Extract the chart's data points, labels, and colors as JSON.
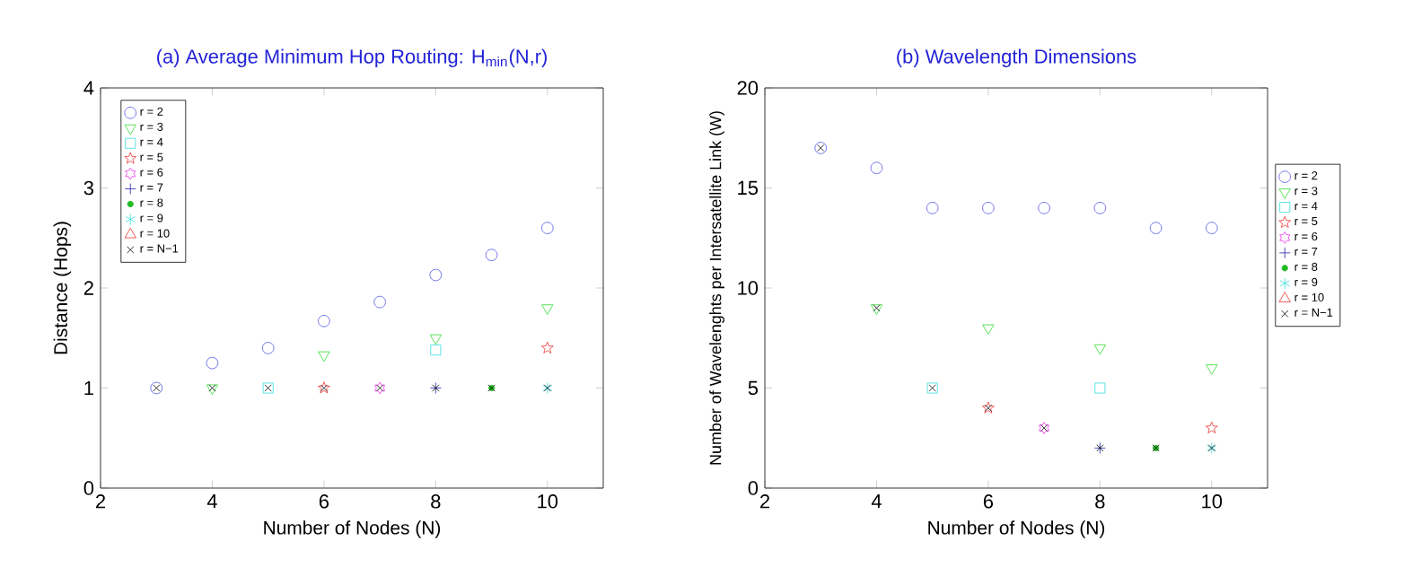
{
  "chart_data": [
    {
      "type": "scatter",
      "title": "(a) Average Minimum Hop Routing: H$_{min}$(N,r)",
      "xlabel": "Number of Nodes (N)",
      "ylabel": "Distance (Hops)",
      "xlim": [
        2,
        11
      ],
      "xticks": [
        2,
        4,
        6,
        8,
        10
      ],
      "ylim": [
        0,
        4
      ],
      "yticks": [
        0,
        1,
        2,
        3,
        4
      ],
      "legend": "top left",
      "series": [
        {
          "name": "r = 2",
          "color": "#5050e6",
          "marker": "circle",
          "x": [
            3,
            4,
            5,
            6,
            7,
            8,
            9,
            10
          ],
          "values": [
            1,
            1.25,
            1.4,
            1.67,
            1.86,
            2.13,
            2.33,
            2.6
          ]
        },
        {
          "name": "r = 3",
          "color": "#33dd33",
          "marker": "triangle-down",
          "x": [
            4,
            6,
            8,
            10
          ],
          "values": [
            1,
            1.33,
            1.5,
            1.8
          ]
        },
        {
          "name": "r = 4",
          "color": "#33dddd",
          "marker": "square",
          "x": [
            5,
            8
          ],
          "values": [
            1,
            1.38
          ]
        },
        {
          "name": "r = 5",
          "color": "#ee3333",
          "marker": "star",
          "x": [
            6,
            10
          ],
          "values": [
            1,
            1.4
          ]
        },
        {
          "name": "r = 6",
          "color": "#ee33ee",
          "x": [
            7
          ],
          "values": [
            1
          ]
        },
        {
          "name": "r = 7",
          "color": "#2222aa",
          "marker": "plus",
          "x": [
            8
          ],
          "values": [
            1
          ]
        },
        {
          "name": "r = 8",
          "color": "#22bb22",
          "marker": "point",
          "x": [
            9
          ],
          "values": [
            1
          ]
        },
        {
          "name": "r = 9",
          "color": "#33dddd",
          "x": [
            10
          ],
          "values": [
            1
          ]
        },
        {
          "name": "r = 10",
          "color": "#ee3333",
          "marker": "triangle"
        },
        {
          "name": "r = N−1",
          "color": "#000000",
          "marker": "cross",
          "x": [
            3,
            4,
            5,
            6,
            7,
            8,
            9,
            10
          ],
          "values": [
            1,
            1,
            1,
            1,
            1,
            1,
            1,
            1
          ]
        }
      ]
    },
    {
      "type": "scatter",
      "title": "(b) Wavelength Dimensions",
      "xlabel": "Number of Nodes (N)",
      "ylabel": "Number of Wavelenghts per Intersatellite Link (W)",
      "xlim": [
        2,
        11
      ],
      "xticks": [
        2,
        4,
        6,
        8,
        10
      ],
      "ylim": [
        0,
        20
      ],
      "yticks": [
        0,
        5,
        10,
        15,
        20
      ],
      "legend": "right",
      "series": [
        {
          "name": "r = 2",
          "color": "#5050e6",
          "marker": "circle",
          "x": [
            3,
            4,
            5,
            6,
            7,
            8,
            9,
            10
          ],
          "values": [
            17,
            16,
            14,
            14,
            14,
            14,
            13,
            13
          ]
        },
        {
          "name": "r = 3",
          "color": "#33dd33",
          "marker": "triangle-down",
          "x": [
            4,
            6,
            8,
            10
          ],
          "values": [
            9,
            8,
            7,
            6
          ]
        },
        {
          "name": "r = 4",
          "color": "#33dddd",
          "marker": "square",
          "x": [
            5,
            8
          ],
          "values": [
            5,
            5
          ]
        },
        {
          "name": "r = 5",
          "color": "#ee3333",
          "marker": "star",
          "x": [
            6,
            10
          ],
          "values": [
            4,
            3
          ]
        },
        {
          "name": "r = 6",
          "color": "#ee33ee",
          "x": [
            7
          ],
          "values": [
            3
          ]
        },
        {
          "name": "r = 7",
          "color": "#2222aa",
          "marker": "plus",
          "x": [
            8
          ],
          "values": [
            2
          ]
        },
        {
          "name": "r = 8",
          "color": "#22bb22",
          "marker": "point",
          "x": [
            9
          ],
          "values": [
            2
          ]
        },
        {
          "name": "r = 9",
          "color": "#33dddd",
          "x": [
            10
          ],
          "values": [
            2
          ]
        },
        {
          "name": "r = 10",
          "color": "#ee3333",
          "marker": "triangle"
        },
        {
          "name": "r = N−1",
          "color": "#000000",
          "marker": "cross",
          "x": [
            3,
            4,
            5,
            6,
            7,
            8,
            9,
            10
          ],
          "values": [
            17,
            9,
            5,
            4,
            3,
            2,
            2,
            2
          ]
        }
      ]
    }
  ]
}
